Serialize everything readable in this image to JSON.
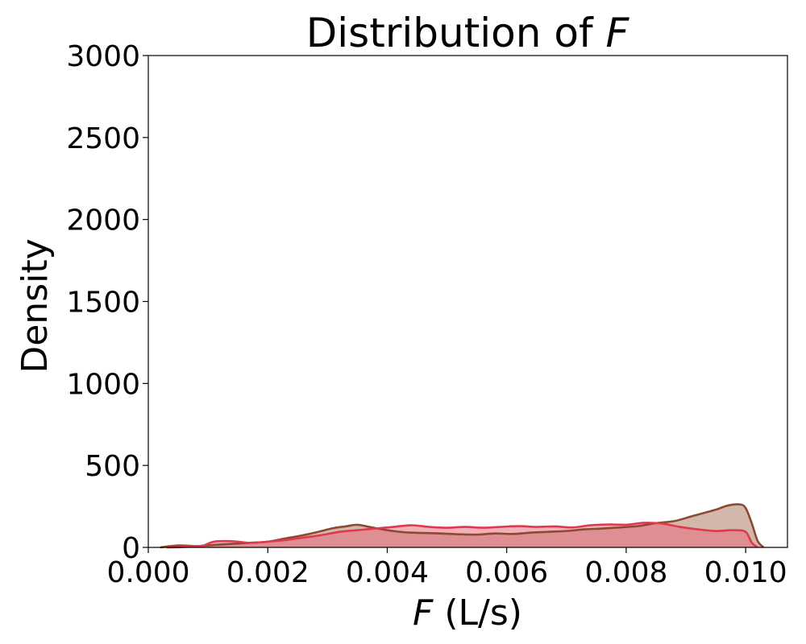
{
  "chart_data": {
    "type": "area",
    "title": "Distribution of ",
    "title_var": "F",
    "xlabel_var": "F",
    "xlabel": " (L/s)",
    "ylabel": "Density",
    "xlim": [
      0.0,
      0.0107
    ],
    "ylim": [
      0,
      3000
    ],
    "x_ticks": [
      0.0,
      0.002,
      0.004,
      0.006,
      0.008,
      0.01
    ],
    "x_tick_labels": [
      "0.000",
      "0.002",
      "0.004",
      "0.006",
      "0.008",
      "0.010"
    ],
    "y_ticks": [
      0,
      500,
      1000,
      1500,
      2000,
      2500,
      3000
    ],
    "y_tick_labels": [
      "0",
      "500",
      "1000",
      "1500",
      "2000",
      "2500",
      "3000"
    ],
    "grid": false,
    "series": [
      {
        "color": "#8b4a32",
        "fill": "#b07c66",
        "x": [
          0.0002,
          0.0005,
          0.0008,
          0.0011,
          0.0014,
          0.0017,
          0.002,
          0.0023,
          0.0026,
          0.0029,
          0.0031,
          0.0033,
          0.0035,
          0.0037,
          0.004,
          0.0043,
          0.0046,
          0.0049,
          0.0052,
          0.0055,
          0.0058,
          0.0061,
          0.0064,
          0.0067,
          0.007,
          0.0073,
          0.0076,
          0.0079,
          0.0082,
          0.0085,
          0.0088,
          0.0091,
          0.0093,
          0.0095,
          0.0097,
          0.0099,
          0.01,
          0.0101,
          0.0102,
          0.0103
        ],
        "y": [
          0,
          12,
          8,
          15,
          22,
          28,
          35,
          55,
          75,
          100,
          118,
          128,
          138,
          125,
          105,
          92,
          88,
          85,
          80,
          78,
          85,
          82,
          90,
          95,
          100,
          110,
          115,
          122,
          130,
          148,
          160,
          190,
          210,
          230,
          255,
          262,
          240,
          150,
          40,
          0
        ]
      },
      {
        "color": "#e0384f",
        "fill": "#e8707f",
        "x": [
          0.0003,
          0.0006,
          0.0009,
          0.0011,
          0.0014,
          0.0017,
          0.002,
          0.0023,
          0.0026,
          0.0029,
          0.0032,
          0.0035,
          0.0038,
          0.0041,
          0.0044,
          0.0047,
          0.005,
          0.0053,
          0.0056,
          0.0059,
          0.0062,
          0.0065,
          0.0068,
          0.0071,
          0.0074,
          0.0077,
          0.008,
          0.0083,
          0.0086,
          0.0089,
          0.0092,
          0.0095,
          0.0098,
          0.01,
          0.0101,
          0.0102
        ],
        "y": [
          0,
          3,
          10,
          35,
          38,
          28,
          35,
          45,
          60,
          75,
          95,
          105,
          115,
          125,
          135,
          125,
          120,
          125,
          120,
          125,
          130,
          125,
          128,
          122,
          135,
          140,
          138,
          150,
          145,
          125,
          110,
          100,
          105,
          95,
          30,
          0
        ]
      }
    ]
  }
}
